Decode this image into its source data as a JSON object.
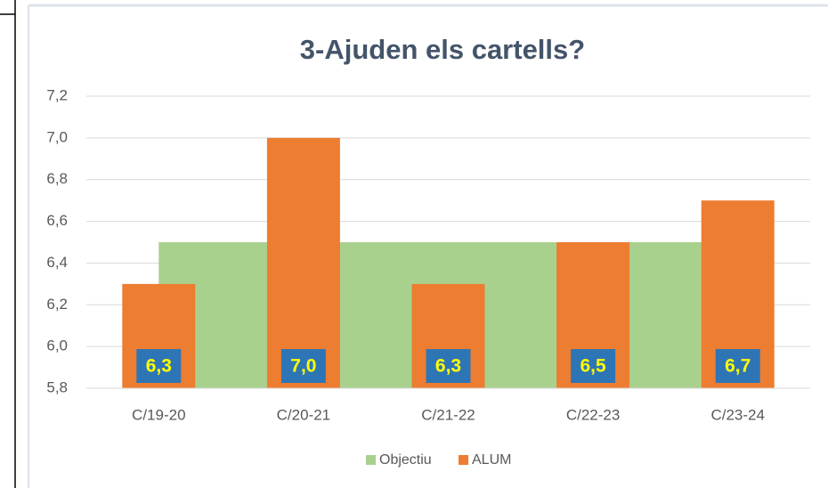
{
  "chart_data": {
    "type": "bar",
    "title": "3-Ajuden els cartells?",
    "categories": [
      "C/19-20",
      "C/20-21",
      "C/21-22",
      "C/22-23",
      "C/23-24"
    ],
    "series": [
      {
        "name": "Objectiu",
        "type": "area",
        "color": "#a9d18e",
        "values": [
          6.5,
          6.5,
          6.5,
          6.5,
          6.5
        ]
      },
      {
        "name": "ALUM",
        "type": "bar",
        "color": "#ed7d31",
        "values": [
          6.3,
          7.0,
          6.3,
          6.5,
          6.7
        ],
        "value_labels": [
          "6,3",
          "7,0",
          "6,3",
          "6,5",
          "6,7"
        ]
      }
    ],
    "ylim": [
      5.8,
      7.2
    ],
    "yticks": [
      {
        "value": 5.8,
        "label": "5,8"
      },
      {
        "value": 6.0,
        "label": "6,0"
      },
      {
        "value": 6.2,
        "label": "6,2"
      },
      {
        "value": 6.4,
        "label": "6,4"
      },
      {
        "value": 6.6,
        "label": "6,6"
      },
      {
        "value": 6.8,
        "label": "6,8"
      },
      {
        "value": 7.0,
        "label": "7,0"
      },
      {
        "value": 7.2,
        "label": "7,2"
      }
    ],
    "grid": true,
    "legend": "bottom"
  }
}
